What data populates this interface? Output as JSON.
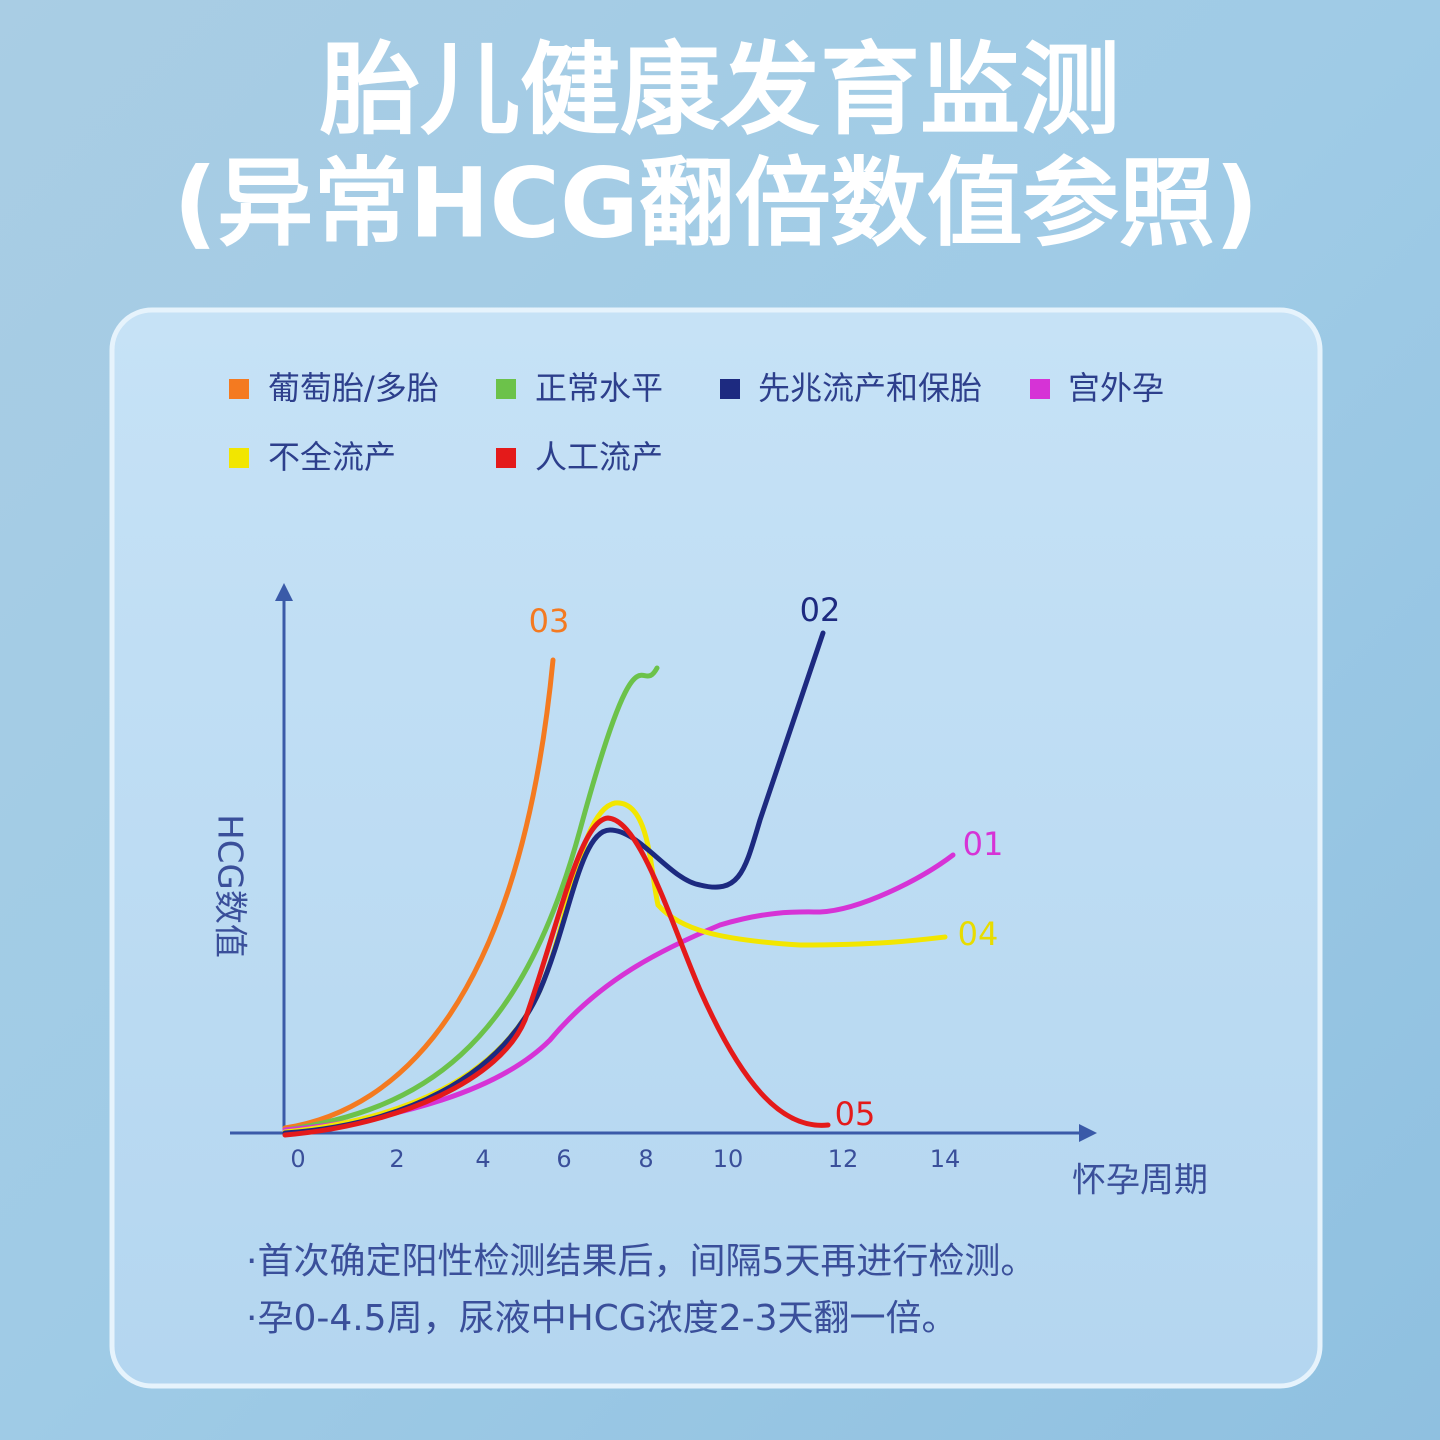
{
  "header": {
    "title_line1": "胎儿健康发育监测",
    "title_line2": "(异常HCG翻倍数值参照)"
  },
  "legend": [
    "葡萄胎/多胎",
    "正常水平",
    "先兆流产和保胎",
    "宫外孕",
    "不全流产",
    "人工流产"
  ],
  "axes": {
    "y_label": "HCG数值",
    "x_label": "怀孕周期",
    "x_ticks": [
      "0",
      "2",
      "4",
      "6",
      "8",
      "10",
      "12",
      "14"
    ]
  },
  "curve_labels": [
    "03",
    "02",
    "01",
    "04",
    "05"
  ],
  "notes": [
    "·首次确定阳性检测结果后，间隔5天再进行检测。",
    "·孕0-4.5周，尿液中HCG浓度2-3天翻一倍。"
  ]
}
